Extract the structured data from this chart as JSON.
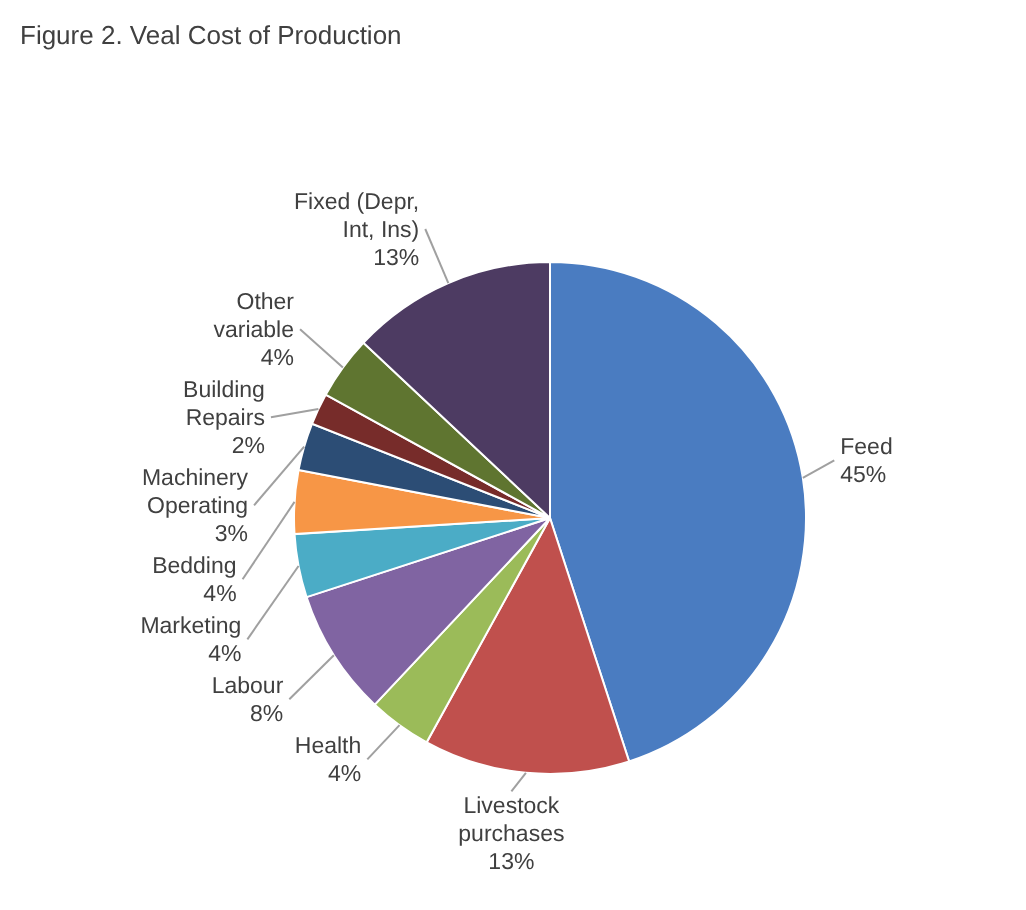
{
  "chart_data": {
    "type": "pie",
    "title": "Figure 2. Veal Cost of Production",
    "categories": [
      "Feed",
      "Livestock purchases",
      "Health",
      "Labour",
      "Marketing",
      "Bedding",
      "Machinery Operating",
      "Building Repairs",
      "Other variable",
      "Fixed (Depr, Int, Ins)"
    ],
    "values": [
      45,
      13,
      4,
      8,
      4,
      4,
      3,
      2,
      4,
      13
    ],
    "value_labels": [
      "45%",
      "13%",
      "4%",
      "8%",
      "4%",
      "4%",
      "3%",
      "2%",
      "4%",
      "13%"
    ],
    "colors": [
      "#4a7cc1",
      "#c0504d",
      "#9bbb59",
      "#8064a2",
      "#4bacc6",
      "#f79646",
      "#2c4d75",
      "#772c2a",
      "#5f7530",
      "#4d3b62"
    ]
  }
}
